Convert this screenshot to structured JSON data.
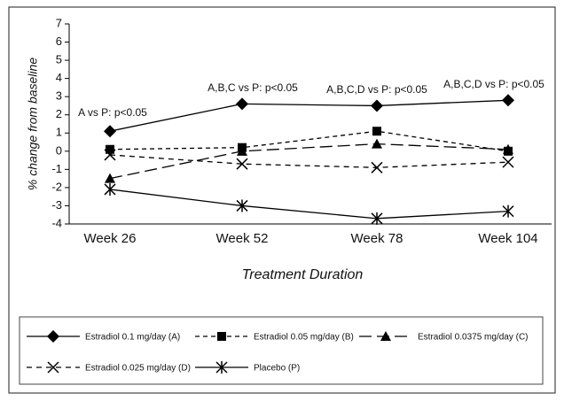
{
  "chart_data": {
    "type": "line",
    "x_label": "Treatment Duration",
    "y_label": "% change from baseline",
    "categories": [
      "Week 26",
      "Week 52",
      "Week 78",
      "Week 104"
    ],
    "ylim": [
      -4,
      7
    ],
    "yticks": [
      -4,
      -3,
      -2,
      -1,
      0,
      1,
      2,
      3,
      4,
      5,
      6,
      7
    ],
    "annotations": [
      "A vs P: p<0.05",
      "A,B,C vs P: p<0.05",
      "A,B,C,D vs P: p<0.05",
      "A,B,C,D vs P: p<0.05"
    ],
    "series": [
      {
        "name": "Estradiol 0.1 mg/day (A)",
        "color": "#000000",
        "marker": "diamond",
        "line": "solid",
        "values": [
          1.1,
          2.6,
          2.5,
          2.8
        ]
      },
      {
        "name": "Estradiol 0.05 mg/day (B)",
        "color": "#000000",
        "marker": "square",
        "line": "dotted-dash",
        "values": [
          0.1,
          0.2,
          1.1,
          0
        ]
      },
      {
        "name": "Estradiol 0.0375 mg/day (C)",
        "color": "#000000",
        "marker": "triangle",
        "line": "long-dash",
        "values": [
          -1.5,
          0,
          0.4,
          0.1
        ]
      },
      {
        "name": "Estradiol 0.025 mg/day (D)",
        "color": "#000000",
        "marker": "x",
        "line": "dash",
        "values": [
          -0.2,
          -0.7,
          -0.9,
          -0.6
        ]
      },
      {
        "name": "Placebo (P)",
        "color": "#000000",
        "marker": "asterisk",
        "line": "solid",
        "values": [
          -2.1,
          -3.0,
          -3.7,
          -3.3
        ]
      }
    ]
  }
}
